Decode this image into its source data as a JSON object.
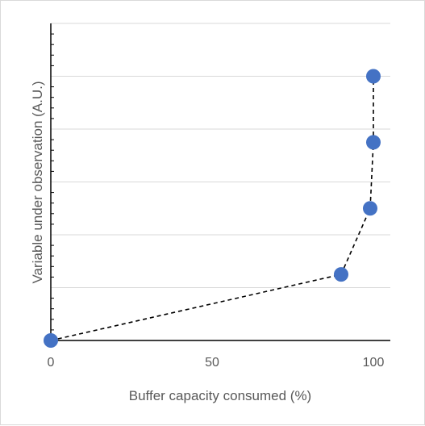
{
  "chart_data": {
    "type": "scatter",
    "title": "",
    "xlabel": "Buffer capacity consumed (%)",
    "ylabel": "Variable under observation (A.U.)",
    "xlim": [
      0,
      105
    ],
    "ylim": [
      0,
      6
    ],
    "x_ticks": [
      0,
      50,
      100
    ],
    "x_tick_labels": [
      "0",
      "50",
      "100"
    ],
    "y_gridlines": [
      1,
      2,
      3,
      4,
      5,
      6
    ],
    "y_tick_labels_shown": false,
    "grid": "horizontal",
    "legend": "none",
    "series": [
      {
        "x": [
          0,
          90,
          99,
          100,
          100
        ],
        "y": [
          0,
          1.25,
          2.5,
          3.75,
          5.0
        ],
        "marker_color": "#4472c4",
        "line_style": "dashed",
        "line_color": "#000000"
      }
    ]
  }
}
